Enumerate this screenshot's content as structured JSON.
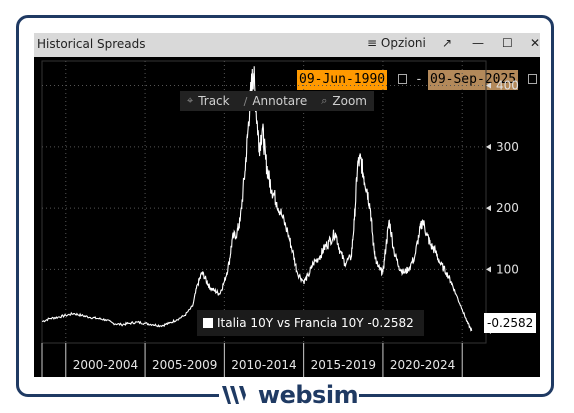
{
  "window": {
    "title": "Historical Spreads",
    "options_label": "Opzioni",
    "popout_glyph": "↗",
    "minimize_glyph": "—",
    "maximize_glyph": "☐",
    "close_glyph": "✕"
  },
  "date_range": {
    "from": "09-Jun-1990",
    "separator": "-",
    "to": "09-Sep-2025"
  },
  "toolbar": {
    "track_label": "Track",
    "annotate_label": "Annotare",
    "zoom_label": "Zoom"
  },
  "legend": {
    "label": "Italia 10Y vs Francia 10Y -0.2582"
  },
  "last_value_label": "-0.2582",
  "brand": {
    "name": "websim",
    "color": "#1f3a63"
  },
  "colors": {
    "date_from_bg": "#ff9900",
    "date_to_bg": "#b3895a",
    "line": "#ffffff",
    "background": "#000000"
  },
  "chart_data": {
    "type": "line",
    "title": "",
    "xlabel": "",
    "ylabel": "",
    "x_tick_labels": [
      "2000-2004",
      "2005-2009",
      "2010-2014",
      "2015-2019",
      "2020-2024"
    ],
    "y_ticks": [
      100,
      200,
      300,
      400
    ],
    "ylim": [
      -20,
      440
    ],
    "xlim": [
      1998.5,
      2026.5
    ],
    "grid": true,
    "series": [
      {
        "name": "Italia 10Y vs Francia 10Y",
        "x": [
          1998.5,
          1999.0,
          1999.5,
          2000.0,
          2000.5,
          2001.0,
          2001.5,
          2002.0,
          2002.5,
          2003.0,
          2003.5,
          2004.0,
          2004.5,
          2005.0,
          2005.5,
          2006.0,
          2006.5,
          2007.0,
          2007.5,
          2008.0,
          2008.3,
          2008.6,
          2008.9,
          2009.1,
          2009.4,
          2009.7,
          2010.0,
          2010.3,
          2010.5,
          2010.8,
          2011.0,
          2011.3,
          2011.5,
          2011.7,
          2011.85,
          2012.0,
          2012.2,
          2012.4,
          2012.6,
          2012.8,
          2013.0,
          2013.3,
          2013.6,
          2014.0,
          2014.3,
          2014.6,
          2015.0,
          2015.3,
          2015.6,
          2016.0,
          2016.3,
          2016.6,
          2017.0,
          2017.3,
          2017.6,
          2018.0,
          2018.2,
          2018.4,
          2018.6,
          2018.8,
          2019.0,
          2019.2,
          2019.4,
          2019.6,
          2019.8,
          2020.0,
          2020.2,
          2020.4,
          2020.7,
          2021.0,
          2021.3,
          2021.6,
          2022.0,
          2022.3,
          2022.5,
          2022.8,
          2023.0,
          2023.3,
          2023.6,
          2024.0,
          2024.3,
          2024.6,
          2025.0,
          2025.3,
          2025.6
        ],
        "values": [
          15,
          20,
          22,
          25,
          28,
          25,
          22,
          20,
          18,
          12,
          10,
          12,
          14,
          12,
          10,
          8,
          12,
          18,
          25,
          40,
          75,
          95,
          80,
          70,
          65,
          60,
          80,
          110,
          150,
          160,
          180,
          260,
          330,
          400,
          420,
          360,
          300,
          330,
          280,
          250,
          230,
          210,
          190,
          160,
          130,
          95,
          80,
          90,
          110,
          120,
          135,
          145,
          160,
          130,
          110,
          120,
          180,
          270,
          280,
          250,
          230,
          200,
          140,
          110,
          100,
          95,
          140,
          180,
          130,
          105,
          95,
          100,
          120,
          160,
          180,
          155,
          140,
          130,
          110,
          95,
          80,
          60,
          35,
          15,
          -0.2582
        ]
      }
    ]
  }
}
